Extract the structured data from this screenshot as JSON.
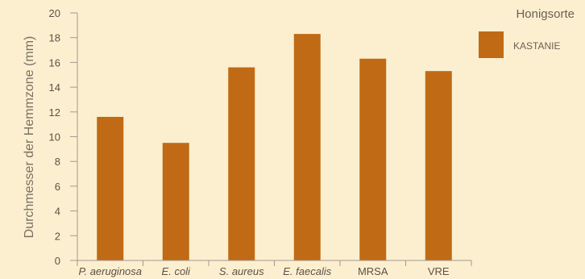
{
  "chart_data": {
    "type": "bar",
    "ylabel": "Durchmesser der Hemmzone (mm)",
    "xlabel": "",
    "ylim": [
      0,
      20
    ],
    "yticks": [
      0,
      2,
      4,
      6,
      8,
      10,
      12,
      14,
      16,
      18,
      20
    ],
    "grid": false,
    "categories": [
      "P. aeruginosa",
      "E. coli",
      "S. aureus",
      "E. faecalis",
      "MRSA",
      "VRE"
    ],
    "category_italic": [
      true,
      true,
      true,
      true,
      false,
      false
    ],
    "series": [
      {
        "name": "KASTANIE",
        "color": "#C06A15",
        "values": [
          11.6,
          9.5,
          15.6,
          18.3,
          16.3,
          15.3
        ]
      }
    ],
    "legend": {
      "title": "Honigsorte",
      "position": "top-right"
    }
  }
}
